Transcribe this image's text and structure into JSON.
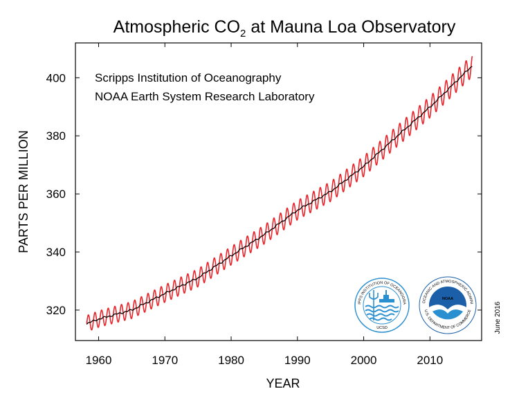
{
  "chart_data": {
    "type": "line",
    "title_main": "Atmospheric CO",
    "title_sub": "2",
    "title_rest": " at Mauna Loa Observatory",
    "annotations": [
      "Scripps Institution of Oceanography",
      "NOAA Earth System Research Laboratory"
    ],
    "xlabel": "YEAR",
    "ylabel": "PARTS PER MILLION",
    "side_note": "June 2016",
    "xlim": [
      1956.5,
      2017.8
    ],
    "ylim": [
      309.5,
      412
    ],
    "x_ticks": [
      1960,
      1970,
      1980,
      1990,
      2000,
      2010
    ],
    "y_ticks": [
      320,
      340,
      360,
      380,
      400
    ],
    "grid": false,
    "series": [
      {
        "role": "monthly",
        "color": "#e8242a",
        "seasonal_amplitude": 3.3,
        "x": [
          1958.2,
          1960,
          1965,
          1970,
          1975,
          1980,
          1985,
          1990,
          1995,
          2000,
          2005,
          2010,
          2016.4
        ],
        "values": [
          315.3,
          316.9,
          320.0,
          325.7,
          331.1,
          338.7,
          346.0,
          354.4,
          360.8,
          369.5,
          379.8,
          389.9,
          404.2
        ]
      },
      {
        "role": "trend",
        "color": "#000000",
        "x": [
          1958.2,
          1960,
          1965,
          1970,
          1975,
          1980,
          1985,
          1990,
          1995,
          2000,
          2005,
          2010,
          2016.4
        ],
        "values": [
          315.3,
          316.9,
          320.0,
          325.7,
          331.1,
          338.7,
          346.0,
          354.4,
          360.8,
          369.5,
          379.8,
          389.9,
          404.2
        ]
      }
    ],
    "logos": [
      {
        "name": "scripps-seal",
        "text_top": "SCRIPPS INSTITUTION OF OCEANOGRAPHY",
        "text_bottom": "UCSD"
      },
      {
        "name": "noaa-seal",
        "text_top": "NATIONAL OCEANIC AND ATMOSPHERIC ADMINISTRATION",
        "text_bottom": "U.S. DEPARTMENT OF COMMERCE",
        "emblem": "NOAA"
      }
    ]
  },
  "colors": {
    "monthly": "#e8242a",
    "trend": "#000000",
    "noaa_blue": "#1a5fa8",
    "scripps_blue": "#2a8fd0"
  }
}
